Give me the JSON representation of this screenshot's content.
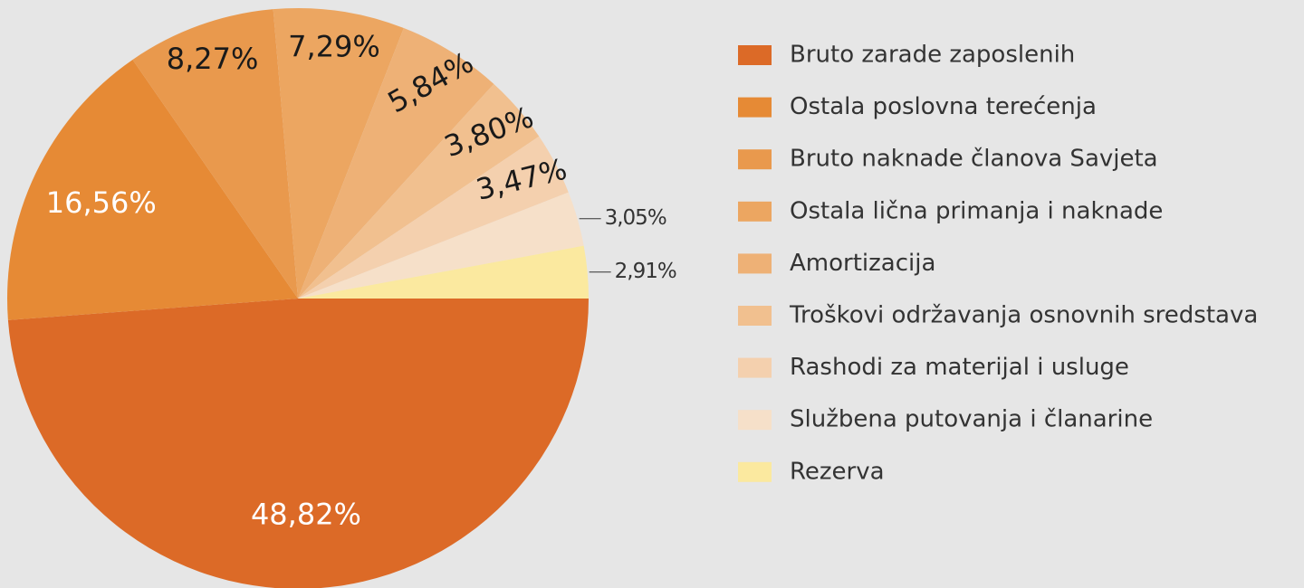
{
  "chart_data": {
    "type": "pie",
    "categories": [
      "Bruto zarade zaposlenih",
      "Ostala poslovna terećenja",
      "Bruto naknade članova Savjeta",
      "Ostala lična primanja i naknade",
      "Amortizacija",
      "Troškovi održavanja osnovnih sredstava",
      "Rashodi za materijal i usluge",
      "Službena putovanja i članarine",
      "Rezerva"
    ],
    "values": [
      48.82,
      16.56,
      8.27,
      7.29,
      5.84,
      3.8,
      3.47,
      3.05,
      2.91
    ],
    "value_labels": [
      "48,82%",
      "16,56%",
      "8,27%",
      "7,29%",
      "5,84%",
      "3,80%",
      "3,47%",
      "3,05%",
      "2,91%"
    ],
    "colors": [
      "#dc6a27",
      "#e68a35",
      "#e9994d",
      "#eca661",
      "#eeb176",
      "#f1c08f",
      "#f4d0ae",
      "#f6e0c9",
      "#fbe99f"
    ],
    "legend": "right"
  }
}
